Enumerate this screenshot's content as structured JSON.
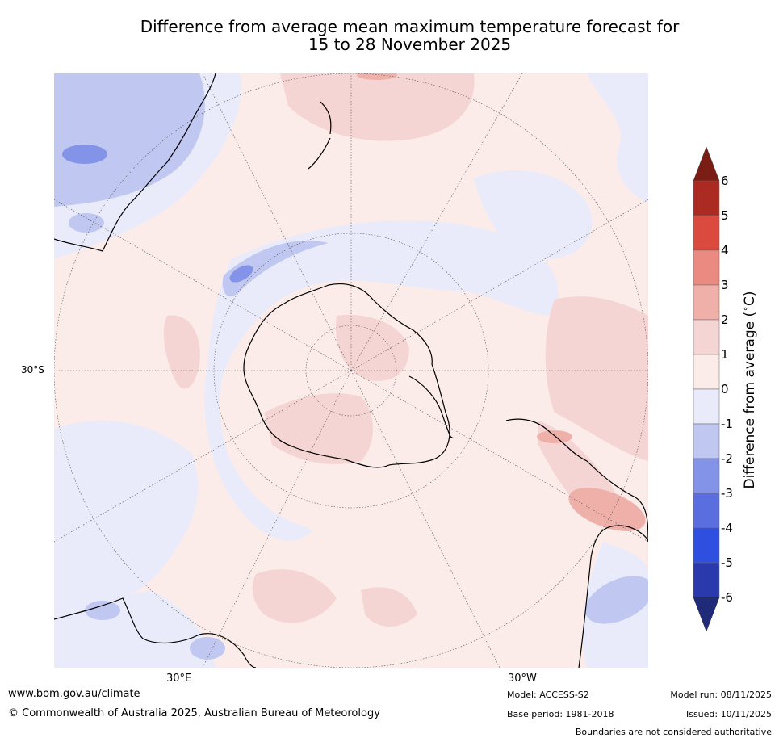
{
  "title": {
    "line1": "Difference from average mean maximum temperature forecast for",
    "line2": "15 to 28 November 2025"
  },
  "map": {
    "projection": "south polar stereographic",
    "features": [
      "Antarctica",
      "Australia",
      "New Zealand",
      "South America",
      "Southern Africa"
    ],
    "graticule_labels": {
      "lat_30s": "30°S",
      "lon_30e": "30°E",
      "lon_30w": "30°W"
    }
  },
  "colorbar": {
    "label": "Difference from average (°C)",
    "label_prefix": "Difference from average (",
    "label_sup": "∘",
    "label_unit": "C)",
    "ticks": [
      "6",
      "5",
      "4",
      "3",
      "2",
      "1",
      "0",
      "-1",
      "-2",
      "-3",
      "-4",
      "-5",
      "-6"
    ],
    "colors": {
      "above_6": "#7a1d15",
      "5_to_6": "#ab2a22",
      "4_to_5": "#db4a3e",
      "3_to_4": "#ea8a80",
      "2_to_3": "#f0b0aa",
      "1_to_2": "#f5d5d3",
      "0_to_1": "#fbece9",
      "m1_to_0": "#e9ebfa",
      "m2_to_m1": "#c0c7f0",
      "m3_to_m2": "#8393e8",
      "m4_to_m3": "#5a6ee0",
      "m5_to_m4": "#2e4fe0",
      "m6_to_m5": "#2a3aac",
      "below_m6": "#1f2a78"
    }
  },
  "footer": {
    "website": "www.bom.gov.au/climate",
    "copyright": "© Commonwealth of Australia 2025, Australian Bureau of Meteorology",
    "model": "Model: ACCESS-S2",
    "base_period": "Base period: 1981-2018",
    "model_run": "Model run: 08/11/2025",
    "issued": "Issued: 10/11/2025",
    "disclaimer": "Boundaries are not considered authoritative"
  }
}
